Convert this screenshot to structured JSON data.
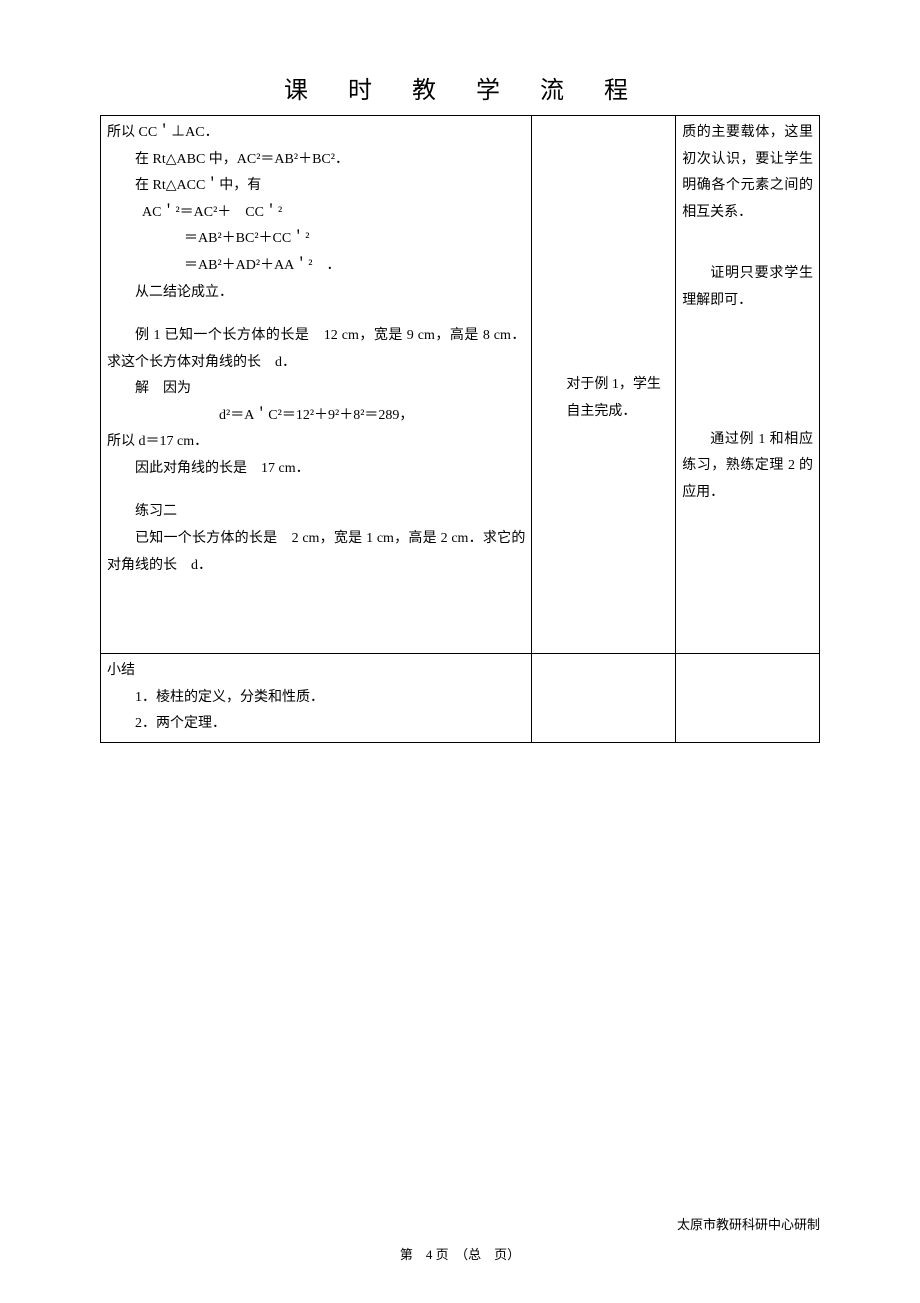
{
  "title": "课　时　教　学　流　程",
  "row1": {
    "col1": {
      "l1": "所以 CC＇⊥AC．",
      "l2": "在 Rt△ABC 中，AC²＝AB²＋BC²．",
      "l3": "在 Rt△ACC＇中，有",
      "l4": "AC＇²＝AC²＋　CC＇²",
      "l5": "＝AB²＋BC²＋CC＇²",
      "l6": "＝AB²＋AD²＋AA＇²　．",
      "l7": "从二结论成立．",
      "l8": "例 1 已知一个长方体的长是　12 cm，宽是 9 cm，高是 8 cm．求这个长方体对角线的长　d．",
      "l9": "解　因为",
      "l10": "d²＝A＇C²＝12²＋9²＋8²＝289，",
      "l11": "所以 d＝17 cm．",
      "l12": "因此对角线的长是　17 cm．",
      "l13": "练习二",
      "l14": "已知一个长方体的长是　2 cm，宽是 1 cm，高是 2 cm．求它的对角线的长　d．"
    },
    "col2": {
      "t1": "对于例 1，学生自主完成．"
    },
    "col3": {
      "p1": "质的主要载体，这里初次认识，要让学生明确各个元素之间的相互关系．",
      "p2": "证明只要求学生理解即可．",
      "p3": "通过例 1 和相应练习，熟练定理 2 的应用．"
    }
  },
  "row2": {
    "h": "小结",
    "l1": "1．棱柱的定义，分类和性质．",
    "l2": "2．两个定理．"
  },
  "footer_right": "太原市教研科研中心研制",
  "footer_center": "第　4 页　（总　页）"
}
